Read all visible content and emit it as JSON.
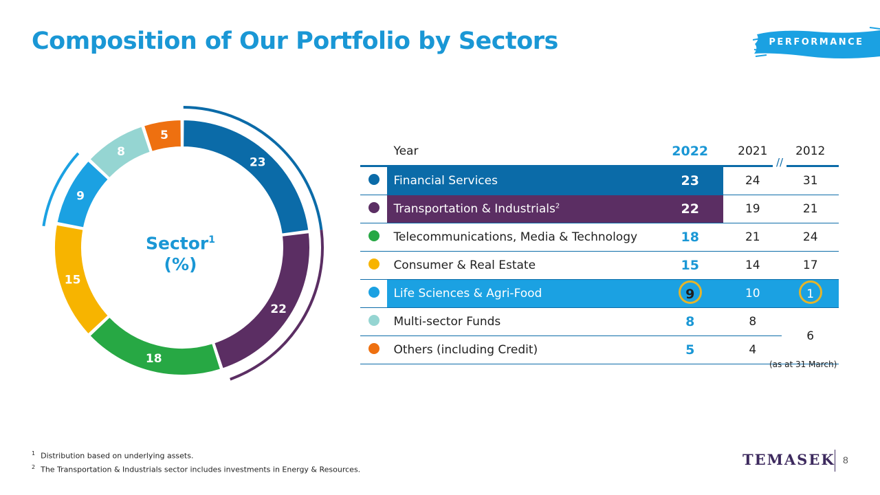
{
  "title": "Composition of Our Portfolio by Sectors",
  "tag": "PERFORMANCE",
  "chart_data": {
    "type": "pie",
    "center_label": "Sector",
    "center_label_sup": "1",
    "center_unit": "(%)",
    "categories": [
      "Financial Services",
      "Transportation & Industrials",
      "Telecommunications, Media & Technology",
      "Consumer & Real Estate",
      "Life Sciences & Agri-Food",
      "Multi-sector Funds",
      "Others (including Credit)"
    ],
    "values": [
      23,
      22,
      18,
      15,
      9,
      8,
      5
    ],
    "labels": [
      "23",
      "22",
      "18",
      "15",
      "9",
      "8",
      "5"
    ],
    "colors": [
      "#0b6ba8",
      "#5b2e63",
      "#27a844",
      "#f7b400",
      "#1ba1e2",
      "#95d5d2",
      "#ee7010"
    ]
  },
  "table": {
    "header": {
      "year": "Year",
      "y2022": "2022",
      "y2021": "2021",
      "y2012": "2012"
    },
    "break_mark": "//",
    "rows": [
      {
        "name": "Financial Services",
        "sup": "",
        "v2022": "23",
        "v2021": "24",
        "v2012": "31",
        "color": "#0b6ba8"
      },
      {
        "name": "Transportation & Industrials",
        "sup": "2",
        "v2022": "22",
        "v2021": "19",
        "v2012": "21",
        "color": "#5b2e63"
      },
      {
        "name": "Telecommunications, Media & Technology",
        "sup": "",
        "v2022": "18",
        "v2021": "21",
        "v2012": "24",
        "color": "#27a844"
      },
      {
        "name": "Consumer & Real Estate",
        "sup": "",
        "v2022": "15",
        "v2021": "14",
        "v2012": "17",
        "color": "#f7b400"
      },
      {
        "name": "Life Sciences & Agri-Food",
        "sup": "",
        "v2022": "9",
        "v2021": "10",
        "v2012": "1",
        "color": "#1ba1e2"
      },
      {
        "name": "Multi-sector Funds",
        "sup": "",
        "v2022": "8",
        "v2021": "8",
        "v2012": "6",
        "color": "#95d5d2"
      },
      {
        "name": "Others (including Credit)",
        "sup": "",
        "v2022": "5",
        "v2021": "4",
        "v2012": "",
        "color": "#ee7010"
      }
    ],
    "note": "(as at 31 March)"
  },
  "footnotes": [
    {
      "num": "1",
      "text": "Distribution based on underlying assets."
    },
    {
      "num": "2",
      "text": "The Transportation & Industrials sector includes investments in Energy & Resources."
    }
  ],
  "logo": "TEMASEK",
  "page_number": "8"
}
